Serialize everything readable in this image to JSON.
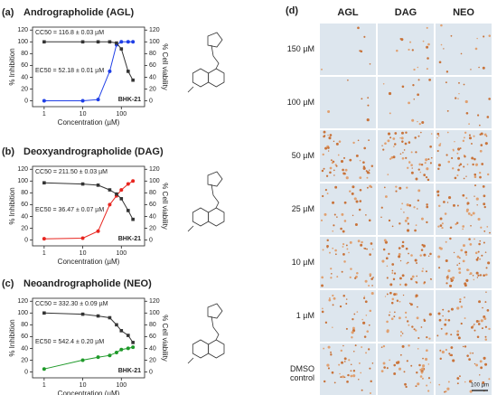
{
  "chart_data": [
    {
      "type": "line",
      "panel": "(a)",
      "title": "Andrographolide (AGL)",
      "title_color": "#1f3fe6",
      "x": [
        1,
        10,
        25,
        50,
        75,
        100,
        150,
        200
      ],
      "log_x": true,
      "xlim": [
        0.5,
        400
      ],
      "xticks": [
        1,
        10,
        100
      ],
      "ylim": [
        -10,
        125
      ],
      "yticks": [
        0,
        20,
        40,
        60,
        80,
        100,
        120
      ],
      "y2lim": [
        -10,
        125
      ],
      "y2ticks": [
        0,
        20,
        40,
        60,
        80,
        100,
        120
      ],
      "xlabel": "Concentration (µM)",
      "ylabel": "% Inhibition",
      "y2label": "% Cell viability",
      "series": [
        {
          "color": "#1f3fe6",
          "values": [
            0,
            0,
            2,
            50,
            95,
            100,
            100,
            100
          ]
        },
        {
          "color": "#333333",
          "axis": "y2",
          "values": [
            100,
            100,
            100,
            100,
            98,
            88,
            50,
            35
          ]
        }
      ],
      "annotations": [
        {
          "text": "CC50 = 116.8 ± 0.03 µM",
          "color": "#222222"
        },
        {
          "text": "EC50 = 52.18 ± 0.01 µM",
          "color": "#1f3fe6"
        },
        {
          "text": "BHK-21",
          "color": "#222222"
        }
      ]
    },
    {
      "type": "line",
      "panel": "(b)",
      "title": "Deoxyandrographolide (DAG)",
      "title_color": "#e8251f",
      "x": [
        1,
        10,
        25,
        50,
        75,
        100,
        150,
        200
      ],
      "log_x": true,
      "xlim": [
        0.5,
        400
      ],
      "xticks": [
        1,
        10,
        100
      ],
      "ylim": [
        -10,
        125
      ],
      "yticks": [
        0,
        20,
        40,
        60,
        80,
        100,
        120
      ],
      "y2lim": [
        -10,
        125
      ],
      "y2ticks": [
        0,
        20,
        40,
        60,
        80,
        100,
        120
      ],
      "xlabel": "Concentration (µM)",
      "ylabel": "% Inhibition",
      "y2label": "% Cell viability",
      "series": [
        {
          "color": "#e8251f",
          "values": [
            2,
            3,
            15,
            60,
            75,
            85,
            95,
            100
          ]
        },
        {
          "color": "#333333",
          "axis": "y2",
          "values": [
            97,
            95,
            93,
            85,
            78,
            70,
            50,
            35
          ]
        }
      ],
      "annotations": [
        {
          "text": "CC50 = 211.50 ± 0.03 µM",
          "color": "#222222"
        },
        {
          "text": "EC50 = 36.47 ± 0.07 µM",
          "color": "#e8251f"
        },
        {
          "text": "BHK-21",
          "color": "#222222"
        }
      ]
    },
    {
      "type": "line",
      "panel": "(c)",
      "title": "Neoandrographolide (NEO)",
      "title_color": "#1f9a2a",
      "x": [
        1,
        10,
        25,
        50,
        75,
        100,
        150,
        200
      ],
      "log_x": true,
      "xlim": [
        0.5,
        400
      ],
      "xticks": [
        1,
        10,
        100
      ],
      "ylim": [
        -10,
        125
      ],
      "yticks": [
        0,
        20,
        40,
        60,
        80,
        100,
        120
      ],
      "y2lim": [
        -10,
        125
      ],
      "y2ticks": [
        0,
        20,
        40,
        60,
        80,
        100,
        120
      ],
      "xlabel": "Concentration (µM)",
      "ylabel": "% Inhibition",
      "y2label": "% Cell viability",
      "series": [
        {
          "color": "#1f9a2a",
          "values": [
            5,
            20,
            25,
            28,
            33,
            38,
            40,
            42
          ]
        },
        {
          "color": "#333333",
          "axis": "y2",
          "values": [
            100,
            98,
            95,
            92,
            80,
            70,
            62,
            50
          ]
        }
      ],
      "annotations": [
        {
          "text": "CC50 = 332.30 ± 0.09 µM",
          "color": "#222222"
        },
        {
          "text": "EC50 = 542.4 ± 0.20 µM",
          "color": "#1f9a2a"
        },
        {
          "text": "BHK-21",
          "color": "#222222"
        }
      ]
    }
  ],
  "panel_d": {
    "label": "(d)",
    "columns": [
      {
        "text": "AGL",
        "color": "#1f3fe6"
      },
      {
        "text": "DAG",
        "color": "#e8251f"
      },
      {
        "text": "NEO",
        "color": "#1f9a2a"
      }
    ],
    "rows": [
      "150 µM",
      "100 µM",
      "50 µM",
      "25 µM",
      "10 µM",
      "1 µM",
      "DMSO control"
    ],
    "scale_bar": "100 µm"
  }
}
